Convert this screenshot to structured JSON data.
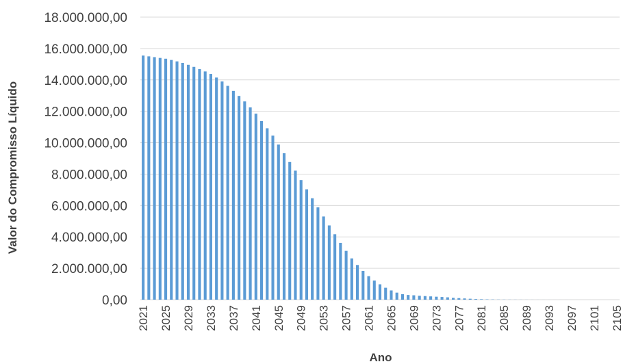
{
  "chart_data": {
    "type": "bar",
    "title": "",
    "xlabel": "Ano",
    "ylabel": "Valor do Compromisso Líquido",
    "ylim": [
      0,
      18000000
    ],
    "y_ticks": [
      0,
      2000000,
      4000000,
      6000000,
      8000000,
      10000000,
      12000000,
      14000000,
      16000000,
      18000000
    ],
    "y_tick_labels": [
      "0,00",
      "2.000.000,00",
      "4.000.000,00",
      "6.000.000,00",
      "8.000.000,00",
      "10.000.000,00",
      "12.000.000,00",
      "14.000.000,00",
      "16.000.000,00",
      "18.000.000,00"
    ],
    "x_tick_labels": [
      "2021",
      "2025",
      "2029",
      "2033",
      "2037",
      "2041",
      "2045",
      "2049",
      "2053",
      "2057",
      "2061",
      "2065",
      "2069",
      "2073",
      "2077",
      "2081",
      "2085",
      "2089",
      "2093",
      "2097",
      "2101",
      "2105"
    ],
    "grid": true,
    "legend": "none",
    "bar_color": "#5b9bd5",
    "categories": [
      "2021",
      "2022",
      "2023",
      "2024",
      "2025",
      "2026",
      "2027",
      "2028",
      "2029",
      "2030",
      "2031",
      "2032",
      "2033",
      "2034",
      "2035",
      "2036",
      "2037",
      "2038",
      "2039",
      "2040",
      "2041",
      "2042",
      "2043",
      "2044",
      "2045",
      "2046",
      "2047",
      "2048",
      "2049",
      "2050",
      "2051",
      "2052",
      "2053",
      "2054",
      "2055",
      "2056",
      "2057",
      "2058",
      "2059",
      "2060",
      "2061",
      "2062",
      "2063",
      "2064",
      "2065",
      "2066",
      "2067",
      "2068",
      "2069",
      "2070",
      "2071",
      "2072",
      "2073",
      "2074",
      "2075",
      "2076",
      "2077",
      "2078",
      "2079",
      "2080",
      "2081",
      "2082",
      "2083",
      "2084",
      "2085",
      "2086",
      "2087",
      "2088",
      "2089",
      "2090",
      "2091",
      "2092",
      "2093",
      "2094",
      "2095",
      "2096",
      "2097",
      "2098",
      "2099",
      "2100",
      "2101",
      "2102",
      "2103",
      "2104",
      "2105"
    ],
    "values": [
      15550000,
      15500000,
      15450000,
      15400000,
      15350000,
      15270000,
      15180000,
      15080000,
      14960000,
      14830000,
      14690000,
      14540000,
      14380000,
      14150000,
      13900000,
      13620000,
      13300000,
      12980000,
      12630000,
      12250000,
      11850000,
      11380000,
      10920000,
      10450000,
      9880000,
      9330000,
      8770000,
      8220000,
      7620000,
      7030000,
      6460000,
      5880000,
      5300000,
      4730000,
      4170000,
      3620000,
      3110000,
      2630000,
      2210000,
      1830000,
      1500000,
      1220000,
      980000,
      760000,
      590000,
      450000,
      350000,
      300000,
      280000,
      250000,
      230000,
      210000,
      190000,
      170000,
      150000,
      120000,
      100000,
      80000,
      60000,
      40000,
      30000,
      20000,
      15000,
      10000,
      8000,
      6000,
      5000,
      4000,
      3000,
      2500,
      2000,
      1500,
      1000,
      800,
      600,
      500,
      400,
      300,
      200,
      150,
      100,
      80,
      60,
      40,
      20
    ]
  }
}
